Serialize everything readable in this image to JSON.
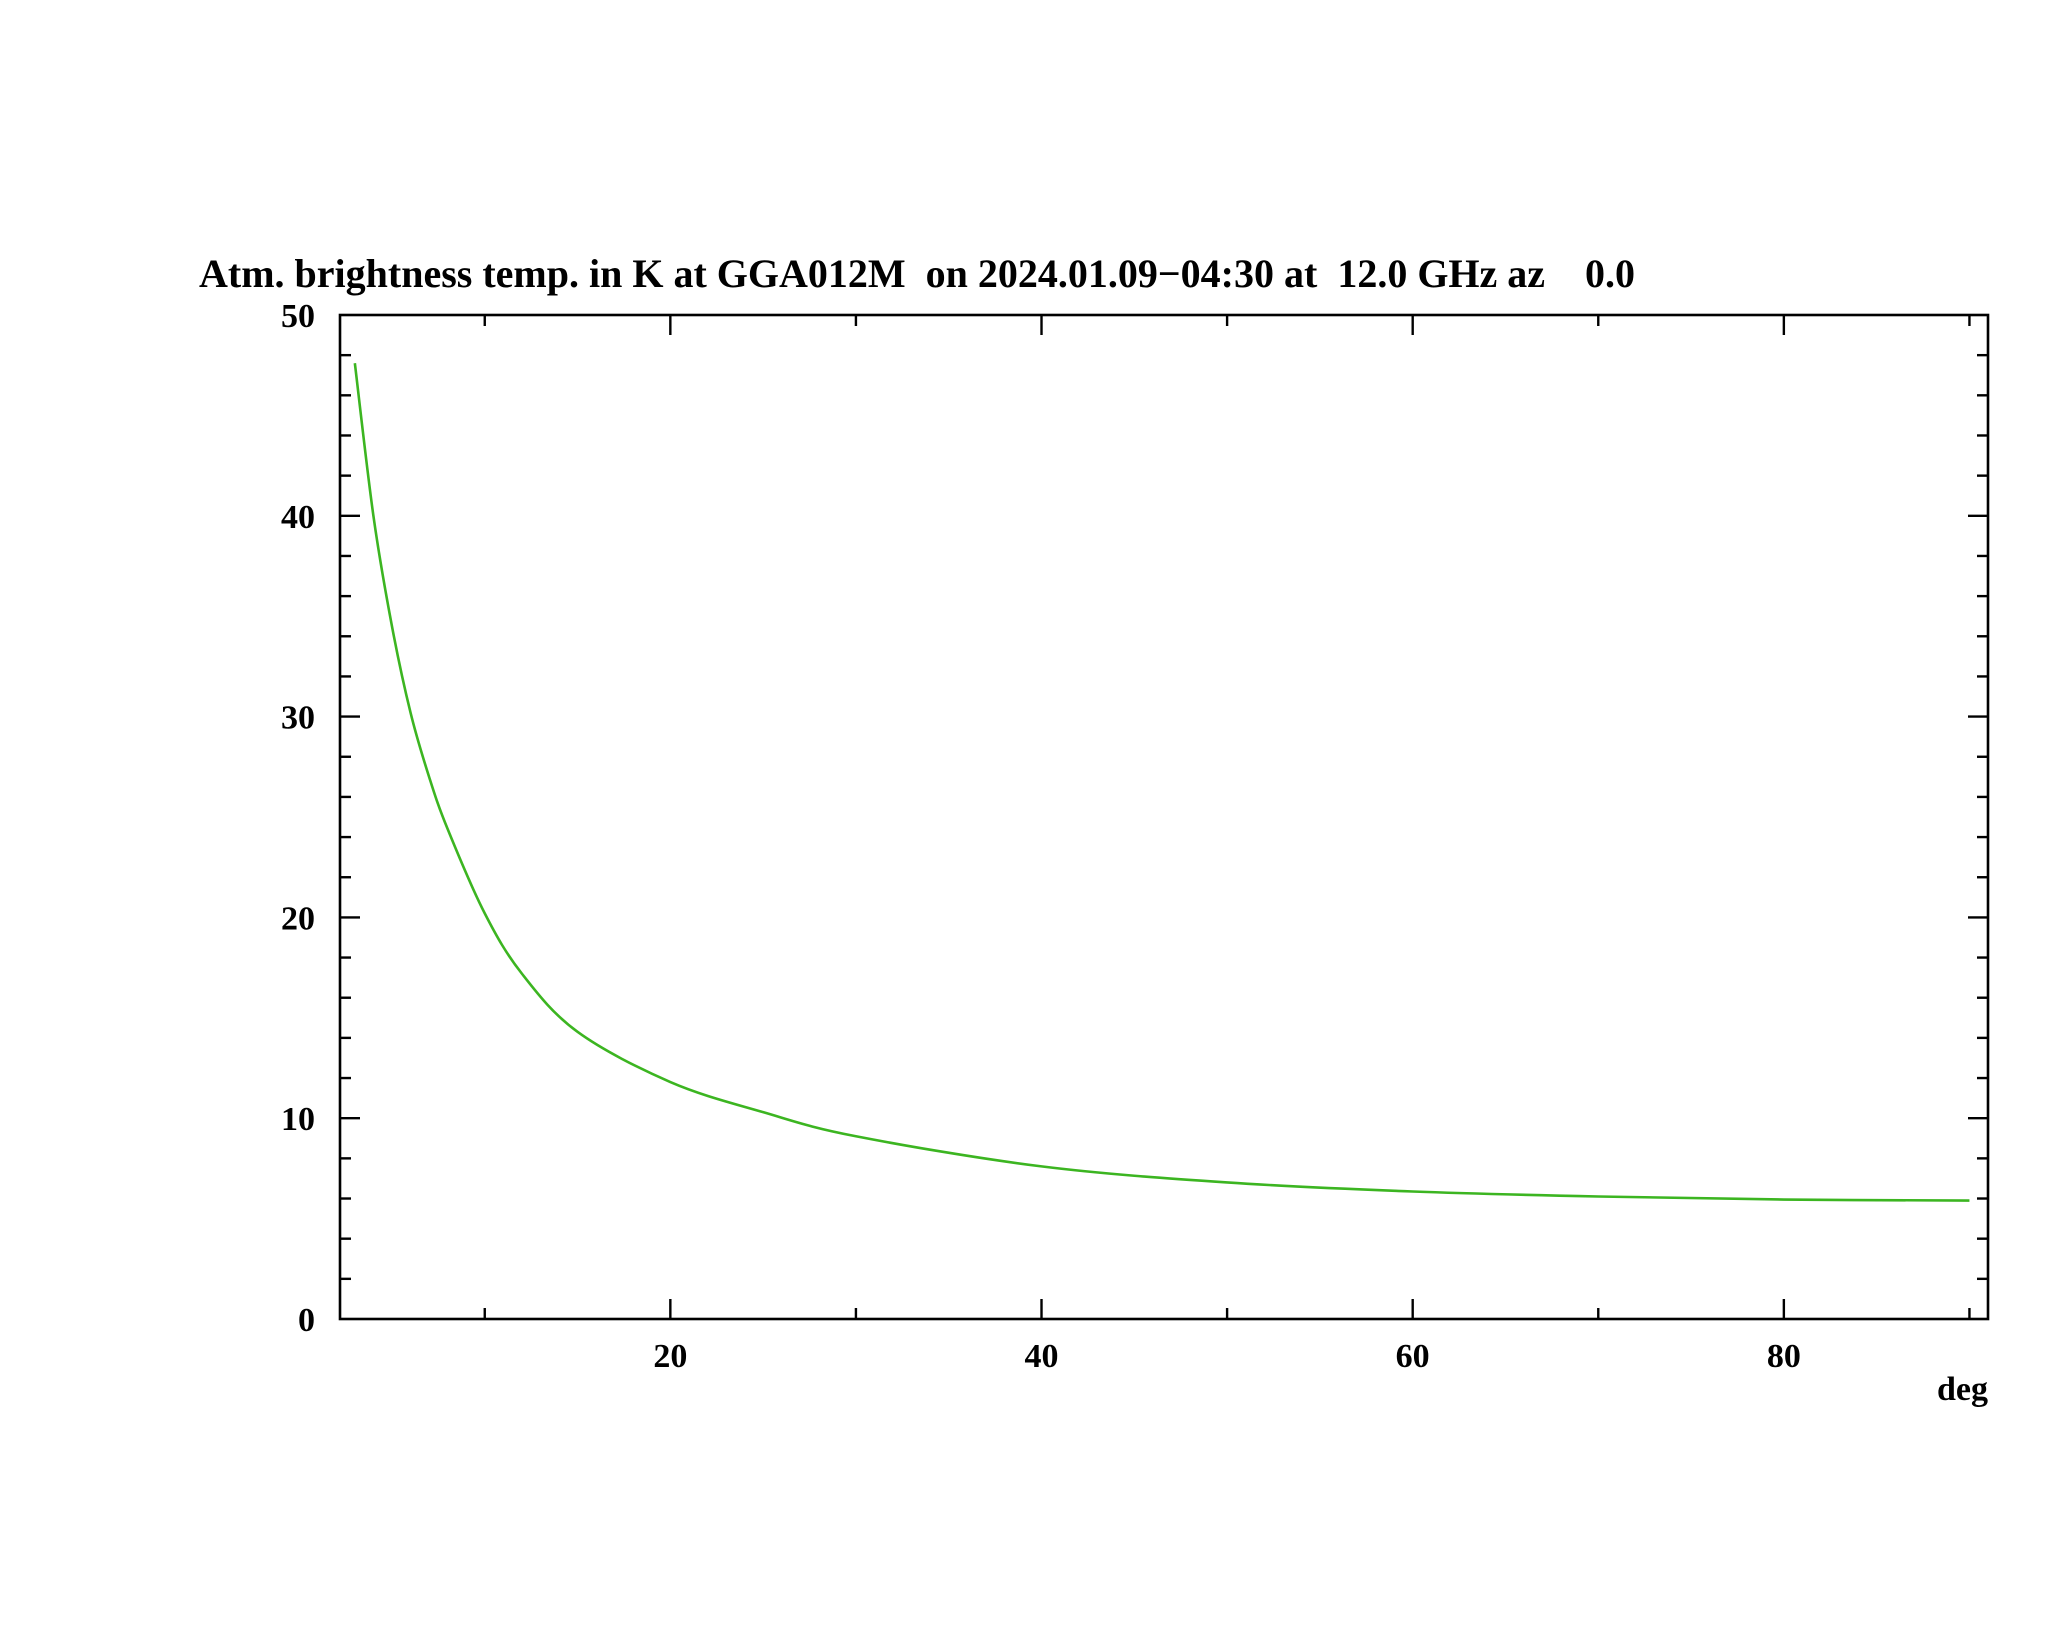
{
  "chart_data": {
    "type": "line",
    "title": "Atm. brightness temp. in K at GGA012M  on 2024.01.09−04:30 at  12.0 GHz az    0.0",
    "xlabel": "deg",
    "ylabel": "",
    "xlim": [
      2.2,
      91
    ],
    "ylim": [
      0,
      50
    ],
    "x_ticks": [
      20,
      40,
      60,
      80
    ],
    "x_tick_labels": [
      "20",
      "40",
      "60",
      "80"
    ],
    "y_ticks": [
      0,
      10,
      20,
      30,
      40,
      50
    ],
    "y_tick_labels": [
      "0",
      "10",
      "20",
      "30",
      "40",
      "50"
    ],
    "grid": false,
    "series": [
      {
        "color": "#3cb521",
        "x": [
          3,
          4,
          5,
          6,
          7,
          8,
          10,
          12,
          15,
          20,
          25,
          30,
          40,
          50,
          60,
          70,
          80,
          90
        ],
        "y": [
          47.6,
          40.0,
          34.5,
          30.2,
          27.0,
          24.4,
          20.2,
          17.2,
          14.3,
          11.8,
          10.3,
          9.1,
          7.6,
          6.8,
          6.35,
          6.1,
          5.95,
          5.9
        ]
      }
    ]
  }
}
